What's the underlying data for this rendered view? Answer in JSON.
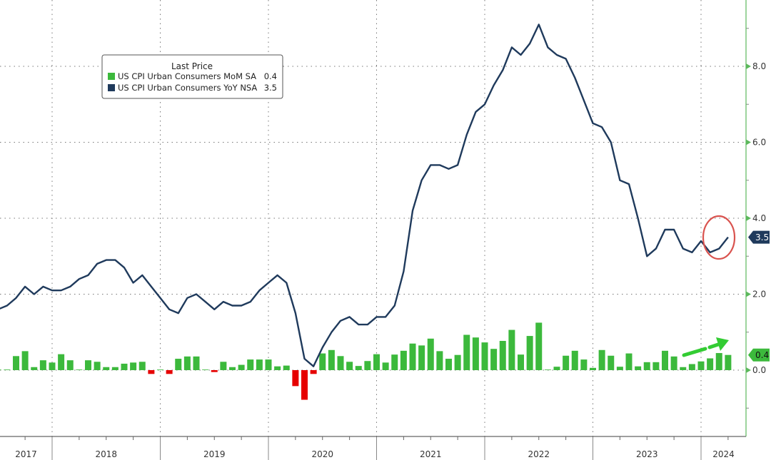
{
  "chart_data": {
    "type": "bar+line",
    "title": "",
    "legend": {
      "title": "Last Price",
      "placement": "top-left",
      "entries": [
        {
          "label": "US CPI Urban Consumers MoM SA",
          "last": "0.4",
          "color": "#3cb93c"
        },
        {
          "label": "US CPI Urban Consumers YoY NSA",
          "last": "3.5",
          "color": "#1f3a5c"
        }
      ]
    },
    "x_year_labels": [
      "2017",
      "2018",
      "2019",
      "2020",
      "2021",
      "2022",
      "2023",
      "2024"
    ],
    "y_ticks": [
      "0.0",
      "2.0",
      "4.0",
      "6.0",
      "8.0"
    ],
    "y_tick_values": [
      0,
      2,
      4,
      6,
      8
    ],
    "ylim": [
      -1.75,
      9.75
    ],
    "grid": true,
    "colors": {
      "positive_bar": "#3cb93c",
      "negative_bar": "#e60000",
      "line": "#1f3a5c",
      "axis": "#5cb85c",
      "highlight_circle": "#d9534f",
      "arrow": "#33cc33"
    },
    "last_value_labels": {
      "yoy": "3.5",
      "mom": "0.4"
    },
    "x": [
      "2017-06",
      "2017-07",
      "2017-08",
      "2017-09",
      "2017-10",
      "2017-11",
      "2017-12",
      "2018-01",
      "2018-02",
      "2018-03",
      "2018-04",
      "2018-05",
      "2018-06",
      "2018-07",
      "2018-08",
      "2018-09",
      "2018-10",
      "2018-11",
      "2018-12",
      "2019-01",
      "2019-02",
      "2019-03",
      "2019-04",
      "2019-05",
      "2019-06",
      "2019-07",
      "2019-08",
      "2019-09",
      "2019-10",
      "2019-11",
      "2019-12",
      "2020-01",
      "2020-02",
      "2020-03",
      "2020-04",
      "2020-05",
      "2020-06",
      "2020-07",
      "2020-08",
      "2020-09",
      "2020-10",
      "2020-11",
      "2020-12",
      "2021-01",
      "2021-02",
      "2021-03",
      "2021-04",
      "2021-05",
      "2021-06",
      "2021-07",
      "2021-08",
      "2021-09",
      "2021-10",
      "2021-11",
      "2021-12",
      "2022-01",
      "2022-02",
      "2022-03",
      "2022-04",
      "2022-05",
      "2022-06",
      "2022-07",
      "2022-08",
      "2022-09",
      "2022-10",
      "2022-11",
      "2022-12",
      "2023-01",
      "2023-02",
      "2023-03",
      "2023-04",
      "2023-05",
      "2023-06",
      "2023-07",
      "2023-08",
      "2023-09",
      "2023-10",
      "2023-11",
      "2023-12",
      "2024-01",
      "2024-02",
      "2024-03"
    ],
    "series": [
      {
        "name": "US CPI Urban Consumers MoM SA",
        "kind": "bar",
        "values": [
          0.0,
          0.0,
          0.37,
          0.5,
          0.08,
          0.26,
          0.2,
          0.42,
          0.26,
          0.0,
          0.26,
          0.22,
          0.08,
          0.08,
          0.17,
          0.2,
          0.22,
          -0.1,
          0.0,
          -0.1,
          0.3,
          0.36,
          0.36,
          0.0,
          -0.05,
          0.22,
          0.08,
          0.14,
          0.28,
          0.28,
          0.28,
          0.1,
          0.12,
          -0.42,
          -0.78,
          -0.1,
          0.44,
          0.53,
          0.37,
          0.22,
          0.11,
          0.24,
          0.42,
          0.2,
          0.41,
          0.51,
          0.7,
          0.65,
          0.83,
          0.5,
          0.3,
          0.4,
          0.93,
          0.86,
          0.73,
          0.56,
          0.77,
          1.06,
          0.41,
          0.9,
          1.25,
          0.0,
          0.09,
          0.38,
          0.51,
          0.28,
          0.06,
          0.53,
          0.38,
          0.09,
          0.44,
          0.1,
          0.21,
          0.21,
          0.51,
          0.36,
          0.08,
          0.16,
          0.23,
          0.31,
          0.45,
          0.4
        ]
      },
      {
        "name": "US CPI Urban Consumers YoY NSA",
        "kind": "line",
        "values": [
          1.6,
          1.7,
          1.9,
          2.2,
          2.0,
          2.2,
          2.1,
          2.1,
          2.2,
          2.4,
          2.5,
          2.8,
          2.9,
          2.9,
          2.7,
          2.3,
          2.5,
          2.2,
          1.9,
          1.6,
          1.5,
          1.9,
          2.0,
          1.8,
          1.6,
          1.8,
          1.7,
          1.7,
          1.8,
          2.1,
          2.3,
          2.5,
          2.3,
          1.5,
          0.3,
          0.1,
          0.6,
          1.0,
          1.3,
          1.4,
          1.2,
          1.2,
          1.4,
          1.4,
          1.7,
          2.6,
          4.2,
          5.0,
          5.4,
          5.4,
          5.3,
          5.4,
          6.2,
          6.8,
          7.0,
          7.5,
          7.9,
          8.5,
          8.3,
          8.6,
          9.1,
          8.5,
          8.3,
          8.2,
          7.7,
          7.1,
          6.5,
          6.4,
          6.0,
          5.0,
          4.9,
          4.0,
          3.0,
          3.2,
          3.7,
          3.7,
          3.2,
          3.1,
          3.4,
          3.1,
          3.2,
          3.5
        ]
      }
    ]
  }
}
